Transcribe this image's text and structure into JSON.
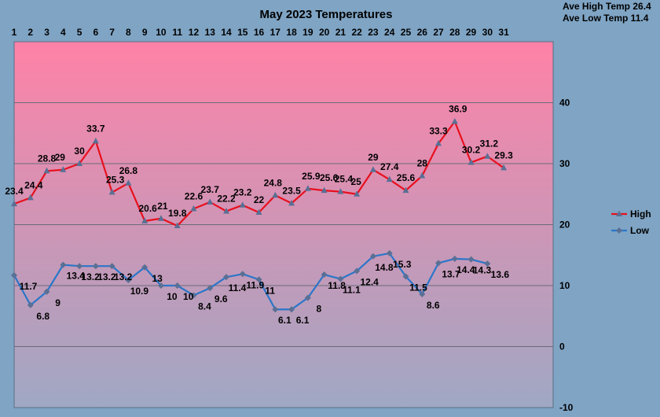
{
  "chart_data": {
    "type": "line",
    "title": "May 2023 Temperatures",
    "stats": [
      "Ave High Temp 26.4",
      "Ave Low Temp 11.4"
    ],
    "x": [
      1,
      2,
      3,
      4,
      5,
      6,
      7,
      8,
      9,
      10,
      11,
      12,
      13,
      14,
      15,
      16,
      17,
      18,
      19,
      20,
      21,
      22,
      23,
      24,
      25,
      26,
      27,
      28,
      29,
      30,
      31
    ],
    "series": [
      {
        "name": "High",
        "color": "#e8101e",
        "marker": "triangle",
        "values": [
          23.4,
          24.4,
          28.8,
          29,
          30,
          33.7,
          25.3,
          26.8,
          20.6,
          21,
          19.8,
          22.6,
          23.7,
          22.2,
          23.2,
          22,
          24.8,
          23.5,
          25.9,
          25.6,
          25.4,
          25,
          29,
          27.4,
          25.6,
          28,
          33.3,
          36.9,
          30.2,
          31.2,
          29.3
        ]
      },
      {
        "name": "Low",
        "color": "#2a76c9",
        "marker": "diamond",
        "values": [
          11.7,
          6.8,
          9,
          13.4,
          13.2,
          13.2,
          13.2,
          10.9,
          13,
          10,
          10,
          8.4,
          9.6,
          11.4,
          11.9,
          11,
          6.1,
          6.1,
          8,
          11.8,
          11.1,
          12.4,
          14.8,
          15.3,
          11.5,
          8.6,
          13.7,
          14.4,
          14.3,
          13.6,
          null
        ]
      }
    ],
    "ylim": [
      -10,
      50
    ],
    "yticks": [
      -10,
      0,
      10,
      20,
      30,
      40
    ],
    "grid": true,
    "legend": "right",
    "background_gradient": [
      "#ff82a7",
      "#9fa8c4"
    ]
  }
}
